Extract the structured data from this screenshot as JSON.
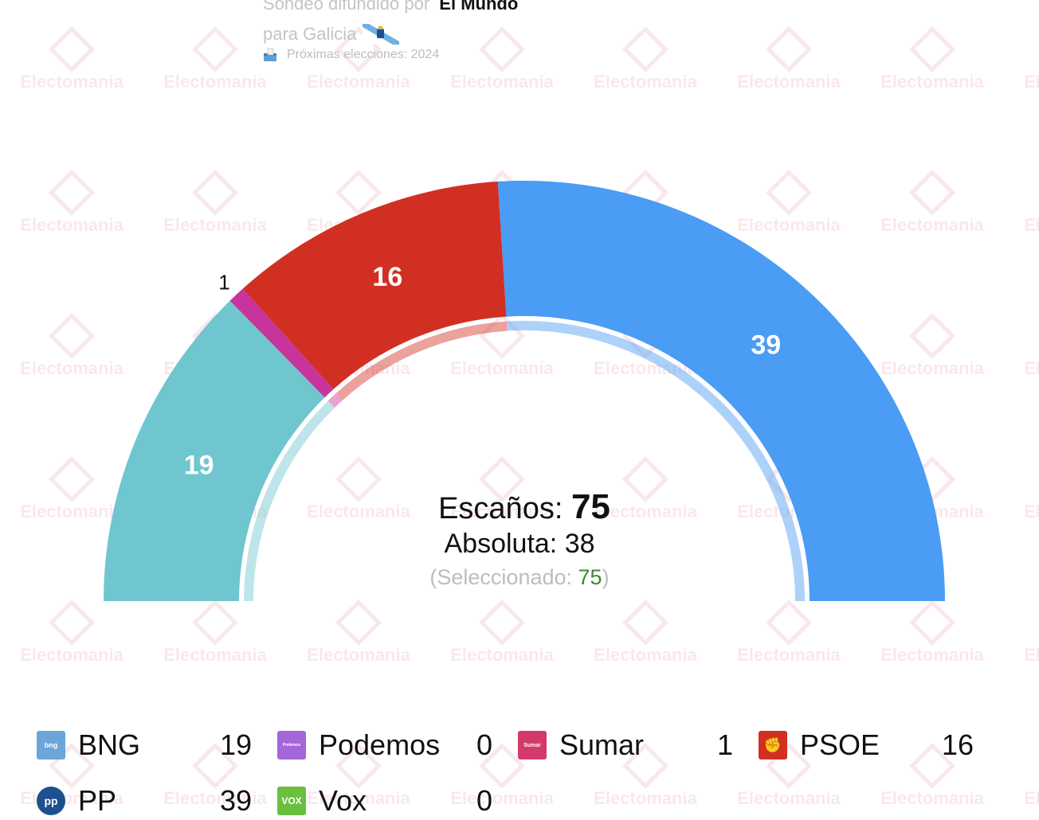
{
  "header": {
    "line1_prefix": "Sondeo difundido por",
    "line1_source": "El Mundo",
    "line2": "para Galicia",
    "line3": "Próximas elecciones: 2024"
  },
  "watermark_text": "Electomania",
  "center": {
    "seats_label": "Escaños:",
    "seats_value": "75",
    "majority_label": "Absoluta: 38",
    "selected_open": "(Seleccionado: ",
    "selected_value": "75",
    "selected_close": ")"
  },
  "chart_data": {
    "type": "parliament-hemicycle",
    "total_seats": 75,
    "majority": 38,
    "selected": 75,
    "series": [
      {
        "name": "BNG",
        "value": 19,
        "color": "#6fc6cf",
        "label": "19"
      },
      {
        "name": "Podemos",
        "value": 0,
        "color": "#a565db",
        "label": ""
      },
      {
        "name": "Sumar",
        "value": 1,
        "color": "#c6349c",
        "label": "1"
      },
      {
        "name": "PSOE",
        "value": 16,
        "color": "#d22f23",
        "label": "16"
      },
      {
        "name": "PP",
        "value": 39,
        "color": "#4a9cf5",
        "label": "39"
      },
      {
        "name": "Vox",
        "value": 0,
        "color": "#6abf3f",
        "label": ""
      }
    ]
  },
  "legend": [
    {
      "name": "BNG",
      "value": "19",
      "logo_text": "bng",
      "logo_color": "#6aa7d8",
      "icon": "bng-logo-icon"
    },
    {
      "name": "Podemos",
      "value": "0",
      "logo_text": "Podemos",
      "logo_color": "#a565db",
      "icon": "podemos-logo-icon"
    },
    {
      "name": "Sumar",
      "value": "1",
      "logo_text": "Sumar",
      "logo_color": "#d33a6a",
      "icon": "sumar-logo-icon"
    },
    {
      "name": "PSOE",
      "value": "16",
      "logo_text": "✊",
      "logo_color": "#d22f23",
      "icon": "psoe-logo-icon"
    },
    {
      "name": "PP",
      "value": "39",
      "logo_text": "pp",
      "logo_color": "#1d4f91",
      "icon": "pp-logo-icon"
    },
    {
      "name": "Vox",
      "value": "0",
      "logo_text": "VOX",
      "logo_color": "#6abf3f",
      "icon": "vox-logo-icon"
    }
  ]
}
